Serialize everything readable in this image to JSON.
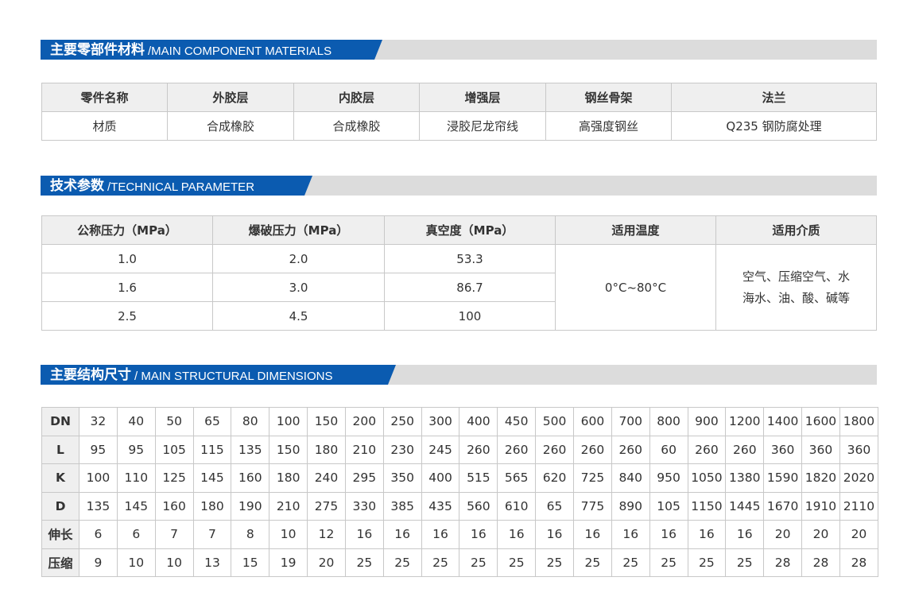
{
  "section1": {
    "title_cn": "主要零部件材料",
    "title_en": "/MAIN COMPONENT MATERIALS",
    "headers": [
      "零件名称",
      "外胶层",
      "内胶层",
      "增强层",
      "钢丝骨架",
      "法兰"
    ],
    "row": [
      "材质",
      "合成橡胶",
      "合成橡胶",
      "浸胶尼龙帘线",
      "高强度钢丝",
      "Q235 钢防腐处理"
    ]
  },
  "section2": {
    "title_cn": "技术参数",
    "title_en": "/TECHNICAL PARAMETER",
    "headers": [
      "公称压力（MPa）",
      "爆破压力（MPa）",
      "真空度（MPa）",
      "适用温度",
      "适用介质"
    ],
    "rows": [
      [
        "1.0",
        "2.0",
        "53.3"
      ],
      [
        "1.6",
        "3.0",
        "86.7"
      ],
      [
        "2.5",
        "4.5",
        "100"
      ]
    ],
    "temperature": "0°C~80°C",
    "medium_line1": "空气、压缩空气、水",
    "medium_line2": "海水、油、酸、碱等"
  },
  "section3": {
    "title_cn": "主要结构尺寸",
    "title_en": "/ MAIN STRUCTURAL DIMENSIONS",
    "rows": [
      {
        "label": "DN",
        "values": [
          "32",
          "40",
          "50",
          "65",
          "80",
          "100",
          "150",
          "200",
          "250",
          "300",
          "400",
          "450",
          "500",
          "600",
          "700",
          "800",
          "900",
          "1200",
          "1400",
          "1600",
          "1800"
        ]
      },
      {
        "label": "L",
        "values": [
          "95",
          "95",
          "105",
          "115",
          "135",
          "150",
          "180",
          "210",
          "230",
          "245",
          "260",
          "260",
          "260",
          "260",
          "260",
          "60",
          "260",
          "260",
          "360",
          "360",
          "360"
        ]
      },
      {
        "label": "K",
        "values": [
          "100",
          "110",
          "125",
          "145",
          "160",
          "180",
          "240",
          "295",
          "350",
          "400",
          "515",
          "565",
          "620",
          "725",
          "840",
          "950",
          "1050",
          "1380",
          "1590",
          "1820",
          "2020"
        ]
      },
      {
        "label": "D",
        "values": [
          "135",
          "145",
          "160",
          "180",
          "190",
          "210",
          "275",
          "330",
          "385",
          "435",
          "560",
          "610",
          "65",
          "775",
          "890",
          "105",
          "1150",
          "1445",
          "1670",
          "1910",
          "2110"
        ]
      },
      {
        "label": "伸长",
        "values": [
          "6",
          "6",
          "7",
          "7",
          "8",
          "10",
          "12",
          "16",
          "16",
          "16",
          "16",
          "16",
          "16",
          "16",
          "16",
          "16",
          "16",
          "16",
          "20",
          "20",
          "20"
        ]
      },
      {
        "label": "压缩",
        "values": [
          "9",
          "10",
          "10",
          "13",
          "15",
          "19",
          "20",
          "25",
          "25",
          "25",
          "25",
          "25",
          "25",
          "25",
          "25",
          "25",
          "25",
          "25",
          "28",
          "28",
          "28"
        ]
      }
    ]
  },
  "colors": {
    "accent": "#0b5bb0",
    "band": "#dcdcdc",
    "header_bg": "#efefef"
  }
}
